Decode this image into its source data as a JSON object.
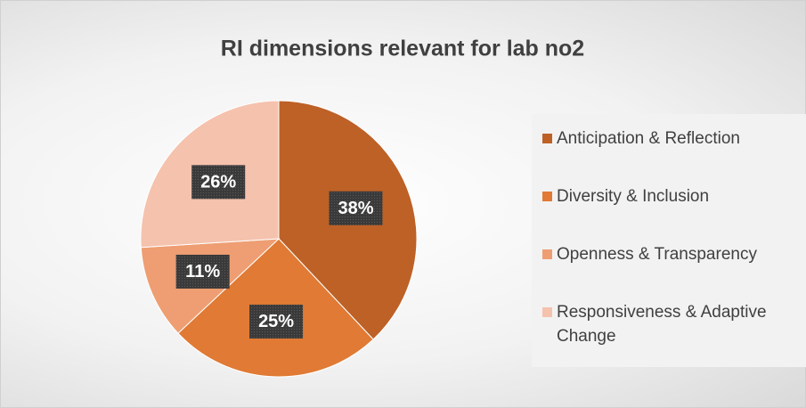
{
  "chart_data": {
    "type": "pie",
    "title": "RI dimensions relevant for lab no2",
    "categories": [
      "Anticipation & Reflection",
      "Diversity & Inclusion",
      "Openness & Transparency",
      "Responsiveness & Adaptive Change"
    ],
    "values": [
      38,
      25,
      11,
      26
    ],
    "value_labels": [
      "38%",
      "25%",
      "11%",
      "26%"
    ],
    "colors": [
      "#bd6127",
      "#e07a34",
      "#ee9e72",
      "#f5c2ad"
    ],
    "legend": "right"
  }
}
